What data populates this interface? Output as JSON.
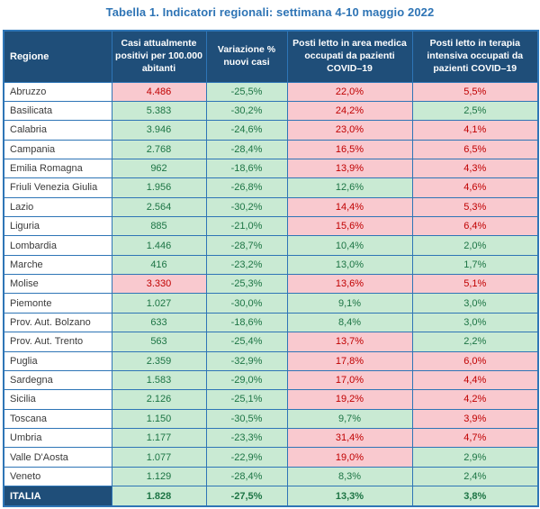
{
  "title": "Tabella 1. Indicatori regionali: settimana 4-10 maggio 2022",
  "colors": {
    "title_text": "#2E74B5",
    "header_bg": "#1F4E79",
    "header_text": "#FFFFFF",
    "grid_border": "#2E75B6",
    "red_cell_bg": "#F9C9CF",
    "red_cell_text": "#C00000",
    "green_cell_bg": "#C9EAD3",
    "green_cell_text": "#1C7444",
    "total_row_bg": "#1F4E79",
    "region_text": "#3A3A3A"
  },
  "table": {
    "columns": [
      "Regione",
      "Casi attualmente positivi per 100.000 abitanti",
      "Variazione % nuovi casi",
      "Posti letto in area medica occupati da pazienti COVID–19",
      "Posti letto in terapia intensiva occupati da pazienti COVID–19"
    ],
    "rows": [
      {
        "regione": "Abruzzo",
        "cells": [
          {
            "v": "4.486",
            "s": "red"
          },
          {
            "v": "-25,5%",
            "s": "green"
          },
          {
            "v": "22,0%",
            "s": "red"
          },
          {
            "v": "5,5%",
            "s": "red"
          }
        ]
      },
      {
        "regione": "Basilicata",
        "cells": [
          {
            "v": "5.383",
            "s": "green"
          },
          {
            "v": "-30,2%",
            "s": "green"
          },
          {
            "v": "24,2%",
            "s": "red"
          },
          {
            "v": "2,5%",
            "s": "green"
          }
        ]
      },
      {
        "regione": "Calabria",
        "cells": [
          {
            "v": "3.946",
            "s": "green"
          },
          {
            "v": "-24,6%",
            "s": "green"
          },
          {
            "v": "23,0%",
            "s": "red"
          },
          {
            "v": "4,1%",
            "s": "red"
          }
        ]
      },
      {
        "regione": "Campania",
        "cells": [
          {
            "v": "2.768",
            "s": "green"
          },
          {
            "v": "-28,4%",
            "s": "green"
          },
          {
            "v": "16,5%",
            "s": "red"
          },
          {
            "v": "6,5%",
            "s": "red"
          }
        ]
      },
      {
        "regione": "Emilia Romagna",
        "cells": [
          {
            "v": "962",
            "s": "green"
          },
          {
            "v": "-18,6%",
            "s": "green"
          },
          {
            "v": "13,9%",
            "s": "red"
          },
          {
            "v": "4,3%",
            "s": "red"
          }
        ]
      },
      {
        "regione": "Friuli Venezia Giulia",
        "cells": [
          {
            "v": "1.956",
            "s": "green"
          },
          {
            "v": "-26,8%",
            "s": "green"
          },
          {
            "v": "12,6%",
            "s": "green"
          },
          {
            "v": "4,6%",
            "s": "red"
          }
        ]
      },
      {
        "regione": "Lazio",
        "cells": [
          {
            "v": "2.564",
            "s": "green"
          },
          {
            "v": "-30,2%",
            "s": "green"
          },
          {
            "v": "14,4%",
            "s": "red"
          },
          {
            "v": "5,3%",
            "s": "red"
          }
        ]
      },
      {
        "regione": "Liguria",
        "cells": [
          {
            "v": "885",
            "s": "green"
          },
          {
            "v": "-21,0%",
            "s": "green"
          },
          {
            "v": "15,6%",
            "s": "red"
          },
          {
            "v": "6,4%",
            "s": "red"
          }
        ]
      },
      {
        "regione": "Lombardia",
        "cells": [
          {
            "v": "1.446",
            "s": "green"
          },
          {
            "v": "-28,7%",
            "s": "green"
          },
          {
            "v": "10,4%",
            "s": "green"
          },
          {
            "v": "2,0%",
            "s": "green"
          }
        ]
      },
      {
        "regione": "Marche",
        "cells": [
          {
            "v": "416",
            "s": "green"
          },
          {
            "v": "-23,2%",
            "s": "green"
          },
          {
            "v": "13,0%",
            "s": "green"
          },
          {
            "v": "1,7%",
            "s": "green"
          }
        ]
      },
      {
        "regione": "Molise",
        "cells": [
          {
            "v": "3.330",
            "s": "red"
          },
          {
            "v": "-25,3%",
            "s": "green"
          },
          {
            "v": "13,6%",
            "s": "red"
          },
          {
            "v": "5,1%",
            "s": "red"
          }
        ]
      },
      {
        "regione": "Piemonte",
        "cells": [
          {
            "v": "1.027",
            "s": "green"
          },
          {
            "v": "-30,0%",
            "s": "green"
          },
          {
            "v": "9,1%",
            "s": "green"
          },
          {
            "v": "3,0%",
            "s": "green"
          }
        ]
      },
      {
        "regione": "Prov. Aut. Bolzano",
        "cells": [
          {
            "v": "633",
            "s": "green"
          },
          {
            "v": "-18,6%",
            "s": "green"
          },
          {
            "v": "8,4%",
            "s": "green"
          },
          {
            "v": "3,0%",
            "s": "green"
          }
        ]
      },
      {
        "regione": "Prov. Aut. Trento",
        "cells": [
          {
            "v": "563",
            "s": "green"
          },
          {
            "v": "-25,4%",
            "s": "green"
          },
          {
            "v": "13,7%",
            "s": "red"
          },
          {
            "v": "2,2%",
            "s": "green"
          }
        ]
      },
      {
        "regione": "Puglia",
        "cells": [
          {
            "v": "2.359",
            "s": "green"
          },
          {
            "v": "-32,9%",
            "s": "green"
          },
          {
            "v": "17,8%",
            "s": "red"
          },
          {
            "v": "6,0%",
            "s": "red"
          }
        ]
      },
      {
        "regione": "Sardegna",
        "cells": [
          {
            "v": "1.583",
            "s": "green"
          },
          {
            "v": "-29,0%",
            "s": "green"
          },
          {
            "v": "17,0%",
            "s": "red"
          },
          {
            "v": "4,4%",
            "s": "red"
          }
        ]
      },
      {
        "regione": "Sicilia",
        "cells": [
          {
            "v": "2.126",
            "s": "green"
          },
          {
            "v": "-25,1%",
            "s": "green"
          },
          {
            "v": "19,2%",
            "s": "red"
          },
          {
            "v": "4,2%",
            "s": "red"
          }
        ]
      },
      {
        "regione": "Toscana",
        "cells": [
          {
            "v": "1.150",
            "s": "green"
          },
          {
            "v": "-30,5%",
            "s": "green"
          },
          {
            "v": "9,7%",
            "s": "green"
          },
          {
            "v": "3,9%",
            "s": "red"
          }
        ]
      },
      {
        "regione": "Umbria",
        "cells": [
          {
            "v": "1.177",
            "s": "green"
          },
          {
            "v": "-23,3%",
            "s": "green"
          },
          {
            "v": "31,4%",
            "s": "red"
          },
          {
            "v": "4,7%",
            "s": "red"
          }
        ]
      },
      {
        "regione": "Valle D'Aosta",
        "cells": [
          {
            "v": "1.077",
            "s": "green"
          },
          {
            "v": "-22,9%",
            "s": "green"
          },
          {
            "v": "19,0%",
            "s": "red"
          },
          {
            "v": "2,9%",
            "s": "green"
          }
        ]
      },
      {
        "regione": "Veneto",
        "cells": [
          {
            "v": "1.129",
            "s": "green"
          },
          {
            "v": "-28,4%",
            "s": "green"
          },
          {
            "v": "8,3%",
            "s": "green"
          },
          {
            "v": "2,4%",
            "s": "green"
          }
        ]
      }
    ],
    "total": {
      "regione": "ITALIA",
      "cells": [
        {
          "v": "1.828",
          "s": "green"
        },
        {
          "v": "-27,5%",
          "s": "green"
        },
        {
          "v": "13,3%",
          "s": "green"
        },
        {
          "v": "3,8%",
          "s": "green"
        }
      ]
    }
  }
}
